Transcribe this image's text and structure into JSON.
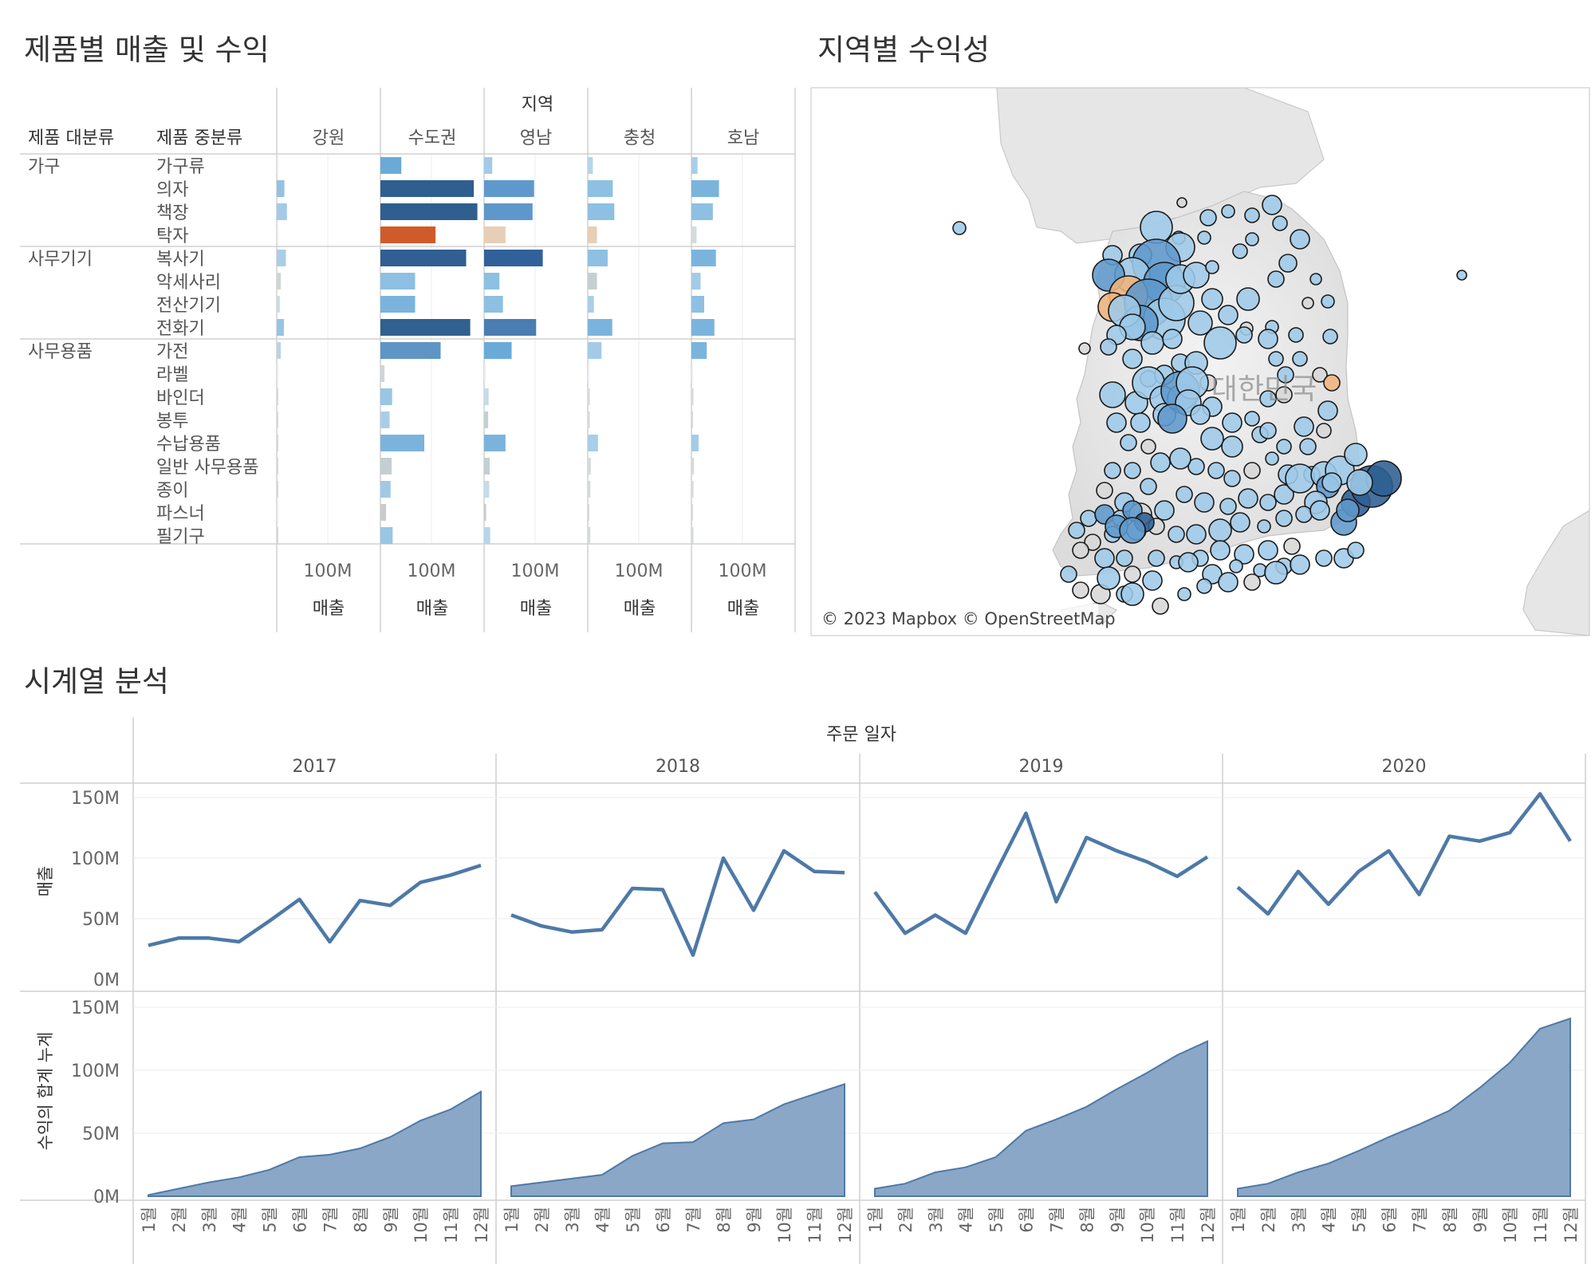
{
  "dashboard": {
    "bar_section_title": "제품별 매출 및 수익",
    "map_section_title": "지역별 수익성",
    "time_section_title": "시계열 분석"
  },
  "bar_panel": {
    "region_header": "지역",
    "category_header": "제품 대분류",
    "subcategory_header": "제품 중분류",
    "x_tick": "100M",
    "x_title": "매출",
    "regions": [
      "강원",
      "수도권",
      "영남",
      "충청",
      "호남"
    ],
    "groups": [
      {
        "category": "가구",
        "rows": [
          "가구류",
          "의자",
          "책장",
          "탁자"
        ]
      },
      {
        "category": "사무기기",
        "rows": [
          "복사기",
          "악세사리",
          "전산기기",
          "전화기"
        ]
      },
      {
        "category": "사무용품",
        "rows": [
          "가전",
          "라벨",
          "바인더",
          "봉투",
          "수납용품",
          "일반 사무용품",
          "종이",
          "파스너",
          "필기구"
        ]
      }
    ]
  },
  "chart_data": [
    {
      "type": "bar",
      "orientation": "horizontal",
      "title": "제품별 매출 및 수익",
      "xlabel": "매출",
      "x_tick_labels": [
        "100M"
      ],
      "xlim": [
        0,
        200
      ],
      "unit": "M",
      "color_encodes": "수익",
      "categories": [
        "가구류",
        "의자",
        "책장",
        "탁자",
        "복사기",
        "악세사리",
        "전산기기",
        "전화기",
        "가전",
        "라벨",
        "바인더",
        "봉투",
        "수납용품",
        "일반 사무용품",
        "종이",
        "파스너",
        "필기구"
      ],
      "series": [
        {
          "name": "강원",
          "values": [
            0,
            15,
            20,
            0,
            18,
            8,
            6,
            14,
            8,
            0,
            2,
            2,
            2,
            2,
            2,
            0,
            2
          ],
          "colors": [
            "#e9eef2",
            "#94c2e2",
            "#a3cbe7",
            "#e9eef2",
            "#a8cee8",
            "#cfd5d6",
            "#c8dbe8",
            "#97c4e3",
            "#b7d4e9",
            "#e9eef2",
            "#d5dadb",
            "#d5dadb",
            "#d5dadb",
            "#d5dadb",
            "#d5dadb",
            "#e9eef2",
            "#d5dadb"
          ]
        },
        {
          "name": "수도권",
          "values": [
            41,
            183,
            190,
            108,
            168,
            68,
            68,
            176,
            118,
            8,
            23,
            18,
            86,
            22,
            20,
            11,
            24
          ],
          "colors": [
            "#6aaad9",
            "#2f5f8f",
            "#2f5f8f",
            "#d15a2a",
            "#305f92",
            "#8dc0e2",
            "#7ab4dd",
            "#30618f",
            "#5e95c4",
            "#d0d5d7",
            "#98c6e3",
            "#a9cde7",
            "#7ab4dd",
            "#c4cfd1",
            "#a1c9e6",
            "#c8ccce",
            "#98c6e3"
          ]
        },
        {
          "name": "영남",
          "values": [
            16,
            98,
            95,
            42,
            115,
            30,
            37,
            102,
            54,
            0,
            9,
            8,
            42,
            11,
            10,
            4,
            12
          ],
          "colors": [
            "#a3cbe7",
            "#5f99cc",
            "#5e97ca",
            "#e6cfb6",
            "#31619a",
            "#8dc0e2",
            "#8dc0e2",
            "#4a7db2",
            "#6aaad9",
            "#e9eef2",
            "#c7dbe8",
            "#c4cfd1",
            "#7ab4dd",
            "#c4cfd1",
            "#c7dbe8",
            "#c8ccce",
            "#b7d4e9"
          ]
        },
        {
          "name": "충청",
          "values": [
            10,
            49,
            52,
            18,
            39,
            18,
            12,
            48,
            27,
            0,
            4,
            4,
            20,
            6,
            5,
            2,
            5
          ],
          "colors": [
            "#b7d4e9",
            "#8dc0e2",
            "#8dc0e2",
            "#e6cfb6",
            "#8dc0e2",
            "#c4cfd1",
            "#a8cee8",
            "#7ab4dd",
            "#a3cbe7",
            "#e9eef2",
            "#d5dadb",
            "#d5dadb",
            "#a8cee8",
            "#d5dadb",
            "#d5dadb",
            "#d5dadb",
            "#d5dadb"
          ]
        },
        {
          "name": "호남",
          "values": [
            12,
            54,
            42,
            10,
            48,
            18,
            25,
            45,
            30,
            0,
            4,
            3,
            14,
            5,
            4,
            2,
            4
          ],
          "colors": [
            "#a8cee8",
            "#7ab4dd",
            "#8dc0e2",
            "#d5dadb",
            "#7ab4dd",
            "#a3cbe7",
            "#8dc0e2",
            "#7ab4dd",
            "#7ab4dd",
            "#e9eef2",
            "#d5dadb",
            "#d5dadb",
            "#a3cbe7",
            "#d5dadb",
            "#d5dadb",
            "#d5dadb",
            "#d5dadb"
          ]
        }
      ]
    },
    {
      "type": "line",
      "title": "시계열 분석",
      "column_header": "주문 일자",
      "ylabel": "매출",
      "ylim": [
        0,
        150
      ],
      "y_ticks": [
        "0M",
        "50M",
        "100M",
        "150M"
      ],
      "x": [
        "1월",
        "2월",
        "3월",
        "4월",
        "5월",
        "6월",
        "7월",
        "8월",
        "9월",
        "10월",
        "11월",
        "12월"
      ],
      "series": [
        {
          "name": "2017",
          "values": [
            28,
            34,
            34,
            31,
            48,
            66,
            31,
            65,
            61,
            80,
            86,
            94
          ]
        },
        {
          "name": "2018",
          "values": [
            53,
            44,
            39,
            41,
            75,
            74,
            20,
            100,
            57,
            106,
            89,
            88
          ]
        },
        {
          "name": "2019",
          "values": [
            72,
            38,
            53,
            38,
            88,
            137,
            64,
            117,
            106,
            97,
            85,
            101
          ]
        },
        {
          "name": "2020",
          "values": [
            76,
            54,
            89,
            62,
            89,
            106,
            70,
            118,
            114,
            121,
            153,
            114
          ]
        }
      ]
    },
    {
      "type": "area",
      "ylabel": "수익의 합계 누계",
      "ylim": [
        0,
        150
      ],
      "y_ticks": [
        "0M",
        "50M",
        "100M",
        "150M"
      ],
      "x": [
        "1월",
        "2월",
        "3월",
        "4월",
        "5월",
        "6월",
        "7월",
        "8월",
        "9월",
        "10월",
        "11월",
        "12월"
      ],
      "series": [
        {
          "name": "2017",
          "values": [
            1,
            6,
            11,
            15,
            21,
            31,
            33,
            38,
            47,
            60,
            69,
            83
          ]
        },
        {
          "name": "2018",
          "values": [
            8,
            11,
            14,
            17,
            32,
            42,
            43,
            58,
            61,
            73,
            81,
            89
          ]
        },
        {
          "name": "2019",
          "values": [
            6,
            10,
            19,
            23,
            31,
            52,
            61,
            71,
            85,
            98,
            112,
            123
          ]
        },
        {
          "name": "2020",
          "values": [
            6,
            10,
            19,
            26,
            36,
            47,
            57,
            68,
            86,
            106,
            133,
            141
          ]
        }
      ]
    }
  ],
  "map": {
    "country_label": "대한민국",
    "attribution": "© 2023 Mapbox © OpenStreetMap",
    "colors": {
      "high_profit": "#2e5f92",
      "medium_profit": "#5f98cc",
      "low_profit": "#9ec9e8",
      "neutral": "#d7d7d7",
      "loss": "#f0b47c"
    }
  }
}
